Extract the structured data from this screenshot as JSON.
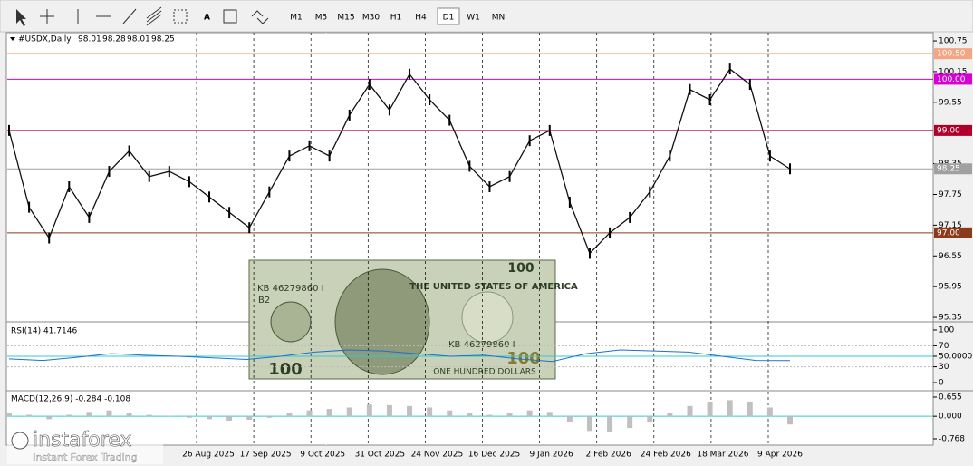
{
  "toolbar": {
    "tools": [
      "A"
    ],
    "timeframes": [
      "M1",
      "M5",
      "M15",
      "M30",
      "H1",
      "H4",
      "D1",
      "W1",
      "MN"
    ],
    "active_timeframe": 6
  },
  "main": {
    "symbol": "#USDX,Daily",
    "ohlc": [
      98.01,
      98.28,
      98.01,
      98.25
    ],
    "ylim": [
      95.28,
      100.91
    ],
    "yticks": [
      {
        "value": 100.75,
        "label": "100.75"
      },
      {
        "value": 100.15,
        "label": "100.15"
      },
      {
        "value": 99.55,
        "label": "99.55"
      },
      {
        "value": 98.35,
        "label": "98.35"
      },
      {
        "value": 97.75,
        "label": "97.75"
      },
      {
        "value": 97.15,
        "label": "97.15"
      },
      {
        "value": 96.55,
        "label": "96.55"
      },
      {
        "value": 95.95,
        "label": "95.95"
      },
      {
        "value": 95.35,
        "label": "95.35"
      }
    ],
    "levels": [
      {
        "value": 100.5,
        "label": "100.50",
        "color": "#f4a582"
      },
      {
        "value": 100,
        "label": "100.00",
        "color": "#d400d4"
      },
      {
        "value": 99,
        "label": "99.00",
        "color": "#b0002a"
      },
      {
        "value": 98.25,
        "label": "98.25",
        "color": "#a0a0a0"
      },
      {
        "value": 97,
        "label": "97.00",
        "color": "#8b3a1a"
      }
    ],
    "close": [
      99.0,
      97.5,
      96.9,
      97.9,
      97.3,
      98.2,
      98.6,
      98.1,
      98.2,
      98.0,
      97.7,
      97.4,
      97.1,
      97.8,
      98.5,
      98.7,
      98.5,
      99.3,
      99.9,
      99.4,
      100.1,
      99.6,
      99.2,
      98.3,
      97.9,
      98.1,
      98.8,
      99.0,
      97.6,
      96.6,
      97.0,
      97.3,
      97.8,
      98.5,
      99.8,
      99.6,
      100.2,
      99.9,
      98.5,
      98.25
    ]
  },
  "rsi": {
    "label": "RSI(14) 41.7146",
    "ylim": [
      -13.8,
      112
    ],
    "yticks": [
      100,
      70,
      {
        "value": 50,
        "label": "50.0000"
      },
      30,
      0
    ],
    "values": [
      45,
      42,
      48,
      55,
      52,
      50,
      47,
      44,
      50,
      58,
      62,
      60,
      55,
      50,
      52,
      45,
      40,
      55,
      62,
      60,
      58,
      50,
      42,
      41.7
    ]
  },
  "macd": {
    "label": "MACD(12,26,9) -0.284 -0.108",
    "ylim": [
      -0.954,
      0.84
    ],
    "yticks": [
      0.655,
      {
        "value": 0,
        "label": "0.000"
      },
      -0.768
    ],
    "histogram": [
      0.1,
      0.05,
      -0.1,
      0.05,
      0.15,
      0.2,
      0.12,
      0.05,
      0.02,
      -0.05,
      -0.1,
      -0.15,
      -0.12,
      -0.05,
      0.1,
      0.2,
      0.25,
      0.3,
      0.4,
      0.38,
      0.35,
      0.3,
      0.2,
      0.1,
      0.05,
      0.1,
      0.2,
      0.15,
      -0.2,
      -0.5,
      -0.55,
      -0.4,
      -0.2,
      0.1,
      0.35,
      0.5,
      0.55,
      0.5,
      0.3,
      -0.28
    ]
  },
  "dates": [
    "26 Aug 2025",
    "17 Sep 2025",
    "9 Oct 2025",
    "31 Oct 2025",
    "24 Nov 2025",
    "16 Dec 2025",
    "9 Jan 2026",
    "2 Feb 2026",
    "24 Feb 2026",
    "18 Mar 2026",
    "9 Apr 2026"
  ],
  "bill": {
    "country": "THE UNITED STATES OF AMERICA",
    "serial": "KB 46279860 I",
    "plate": "B2",
    "denomination": 100,
    "words": "ONE HUNDRED DOLLARS"
  },
  "watermark": {
    "brand": "instaforex",
    "tagline": "Instant Forex Trading"
  }
}
